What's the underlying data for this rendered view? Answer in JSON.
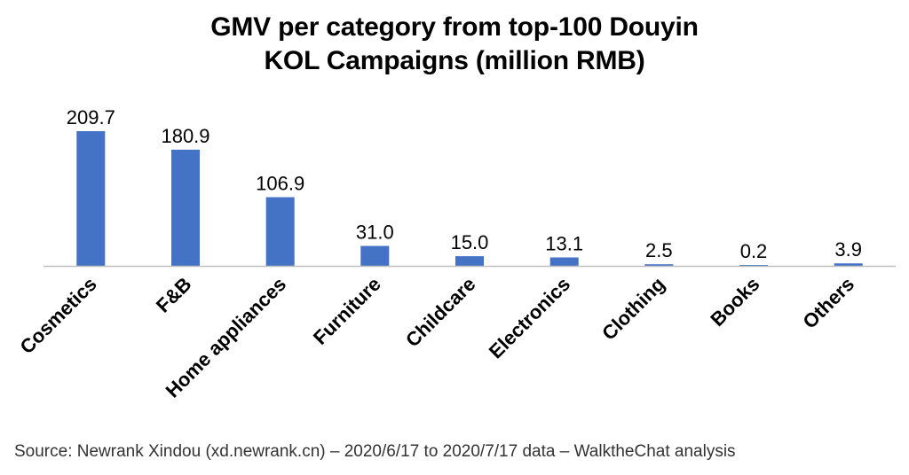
{
  "chart_data": {
    "type": "bar",
    "title_lines": [
      "GMV per category from top-100 Douyin",
      "KOL Campaigns (million RMB)"
    ],
    "categories": [
      "Cosmetics",
      "F&B",
      "Home appliances",
      "Furniture",
      "Childcare",
      "Electronics",
      "Clothing",
      "Books",
      "Others"
    ],
    "values": [
      209.7,
      180.9,
      106.9,
      31.0,
      15.0,
      13.1,
      2.5,
      0.2,
      3.9
    ],
    "value_labels": [
      "209.7",
      "180.9",
      "106.9",
      "31.0",
      "15.0",
      "13.1",
      "2.5",
      "0.2",
      "3.9"
    ],
    "ylim": [
      0,
      209.7
    ],
    "grid": false,
    "legend": "none",
    "colors": {
      "bar": "#4472C4",
      "axis": "#BFBFBF",
      "text": "#000000"
    }
  },
  "source": "Source: Newrank Xindou (xd.newrank.cn) – 2020/6/17 to 2020/7/17 data – WalktheChat analysis"
}
